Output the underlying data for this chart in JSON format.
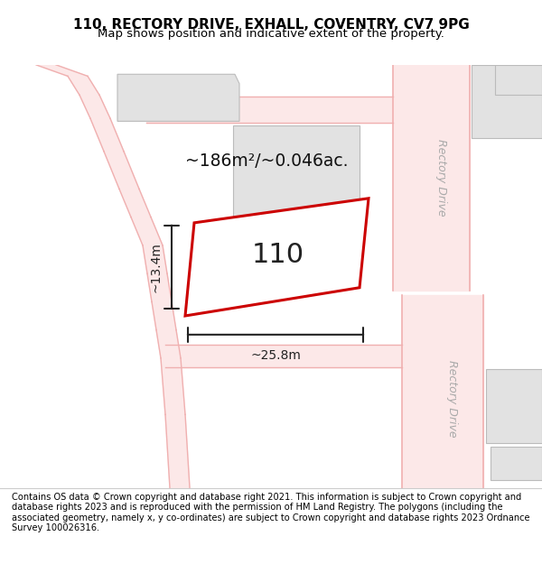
{
  "title": "110, RECTORY DRIVE, EXHALL, COVENTRY, CV7 9PG",
  "subtitle": "Map shows position and indicative extent of the property.",
  "footer": "Contains OS data © Crown copyright and database right 2021. This information is subject to Crown copyright and database rights 2023 and is reproduced with the permission of HM Land Registry. The polygons (including the associated geometry, namely x, y co-ordinates) are subject to Crown copyright and database rights 2023 Ordnance Survey 100026316.",
  "area_label": "~186m²/~0.046ac.",
  "width_label": "~25.8m",
  "height_label": "~13.4m",
  "property_number": "110",
  "bg_color": "#ffffff",
  "road_color": "#f0b0b0",
  "road_fill": "#fce8e8",
  "property_outline_color": "#cc0000",
  "building_fill": "#e2e2e2",
  "building_outline": "#bbbbbb",
  "road_label_color": "#aaaaaa",
  "road_label": "Rectory Drive",
  "dim_color": "#222222"
}
